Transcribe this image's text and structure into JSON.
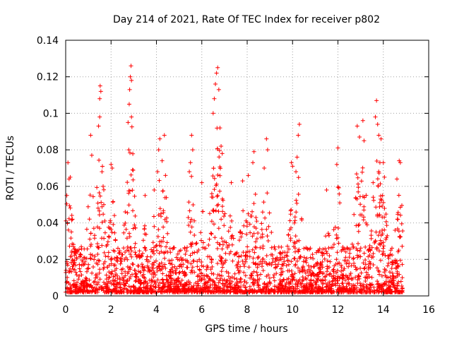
{
  "chart_data": {
    "type": "scatter",
    "title": "Day 214 of 2021, Rate Of TEC Index for receiver p802",
    "xlabel": "GPS time / hours",
    "ylabel": "ROTI / TECUs",
    "xlim": [
      0,
      16
    ],
    "ylim": [
      0,
      0.14
    ],
    "x_ticks": [
      0,
      2,
      4,
      6,
      8,
      10,
      12,
      14,
      16
    ],
    "x_tick_labels": [
      "0",
      "2",
      "4",
      "6",
      "8",
      "10",
      "12",
      "14",
      "16"
    ],
    "y_ticks": [
      0,
      0.02,
      0.04,
      0.06,
      0.08,
      0.1,
      0.12,
      0.14
    ],
    "y_tick_labels": [
      "0",
      "0.02",
      "0.04",
      "0.06",
      "0.08",
      "0.1",
      "0.12",
      "0.14"
    ],
    "grid": true,
    "marker": "+",
    "marker_color": "#ff0000",
    "data_x_range": [
      0,
      14.85
    ],
    "series": [
      {
        "name": "ROTI",
        "color": "#ff0000",
        "points": [
          [
            0.1,
            0.073
          ],
          [
            0.15,
            0.064
          ],
          [
            0.2,
            0.065
          ],
          [
            0.05,
            0.055
          ],
          [
            0.3,
            0.042
          ],
          [
            1.1,
            0.088
          ],
          [
            1.15,
            0.077
          ],
          [
            1.45,
            0.093
          ],
          [
            1.5,
            0.098
          ],
          [
            1.5,
            0.108
          ],
          [
            1.52,
            0.115
          ],
          [
            1.55,
            0.112
          ],
          [
            1.6,
            0.068
          ],
          [
            1.65,
            0.06
          ],
          [
            2.0,
            0.072
          ],
          [
            2.05,
            0.07
          ],
          [
            2.75,
            0.095
          ],
          [
            2.8,
            0.105
          ],
          [
            2.82,
            0.113
          ],
          [
            2.85,
            0.12
          ],
          [
            2.88,
            0.126
          ],
          [
            2.9,
            0.118
          ],
          [
            2.9,
            0.098
          ],
          [
            2.78,
            0.08
          ],
          [
            3.5,
            0.055
          ],
          [
            3.9,
            0.058
          ],
          [
            4.05,
            0.068
          ],
          [
            4.1,
            0.08
          ],
          [
            4.15,
            0.086
          ],
          [
            4.25,
            0.074
          ],
          [
            4.35,
            0.088
          ],
          [
            4.4,
            0.066
          ],
          [
            5.5,
            0.073
          ],
          [
            5.55,
            0.088
          ],
          [
            5.6,
            0.08
          ],
          [
            5.45,
            0.068
          ],
          [
            6.0,
            0.062
          ],
          [
            6.5,
            0.1
          ],
          [
            6.55,
            0.108
          ],
          [
            6.6,
            0.116
          ],
          [
            6.65,
            0.122
          ],
          [
            6.7,
            0.125
          ],
          [
            6.75,
            0.113
          ],
          [
            6.8,
            0.092
          ],
          [
            6.85,
            0.082
          ],
          [
            6.9,
            0.078
          ],
          [
            7.3,
            0.062
          ],
          [
            7.8,
            0.063
          ],
          [
            8.25,
            0.073
          ],
          [
            8.3,
            0.079
          ],
          [
            8.05,
            0.066
          ],
          [
            8.85,
            0.086
          ],
          [
            8.9,
            0.08
          ],
          [
            8.75,
            0.07
          ],
          [
            9.95,
            0.073
          ],
          [
            10.0,
            0.071
          ],
          [
            10.25,
            0.088
          ],
          [
            10.3,
            0.094
          ],
          [
            10.2,
            0.076
          ],
          [
            10.15,
            0.068
          ],
          [
            11.5,
            0.058
          ],
          [
            12.0,
            0.081
          ],
          [
            11.95,
            0.072
          ],
          [
            12.85,
            0.093
          ],
          [
            12.95,
            0.087
          ],
          [
            13.1,
            0.096
          ],
          [
            13.15,
            0.085
          ],
          [
            13.55,
            0.062
          ],
          [
            13.65,
            0.098
          ],
          [
            13.7,
            0.107
          ],
          [
            13.75,
            0.094
          ],
          [
            13.8,
            0.088
          ],
          [
            13.9,
            0.086
          ],
          [
            13.85,
            0.073
          ],
          [
            14.0,
            0.073
          ],
          [
            14.05,
            0.065
          ],
          [
            14.7,
            0.074
          ],
          [
            14.75,
            0.073
          ],
          [
            14.6,
            0.064
          ]
        ]
      }
    ]
  }
}
